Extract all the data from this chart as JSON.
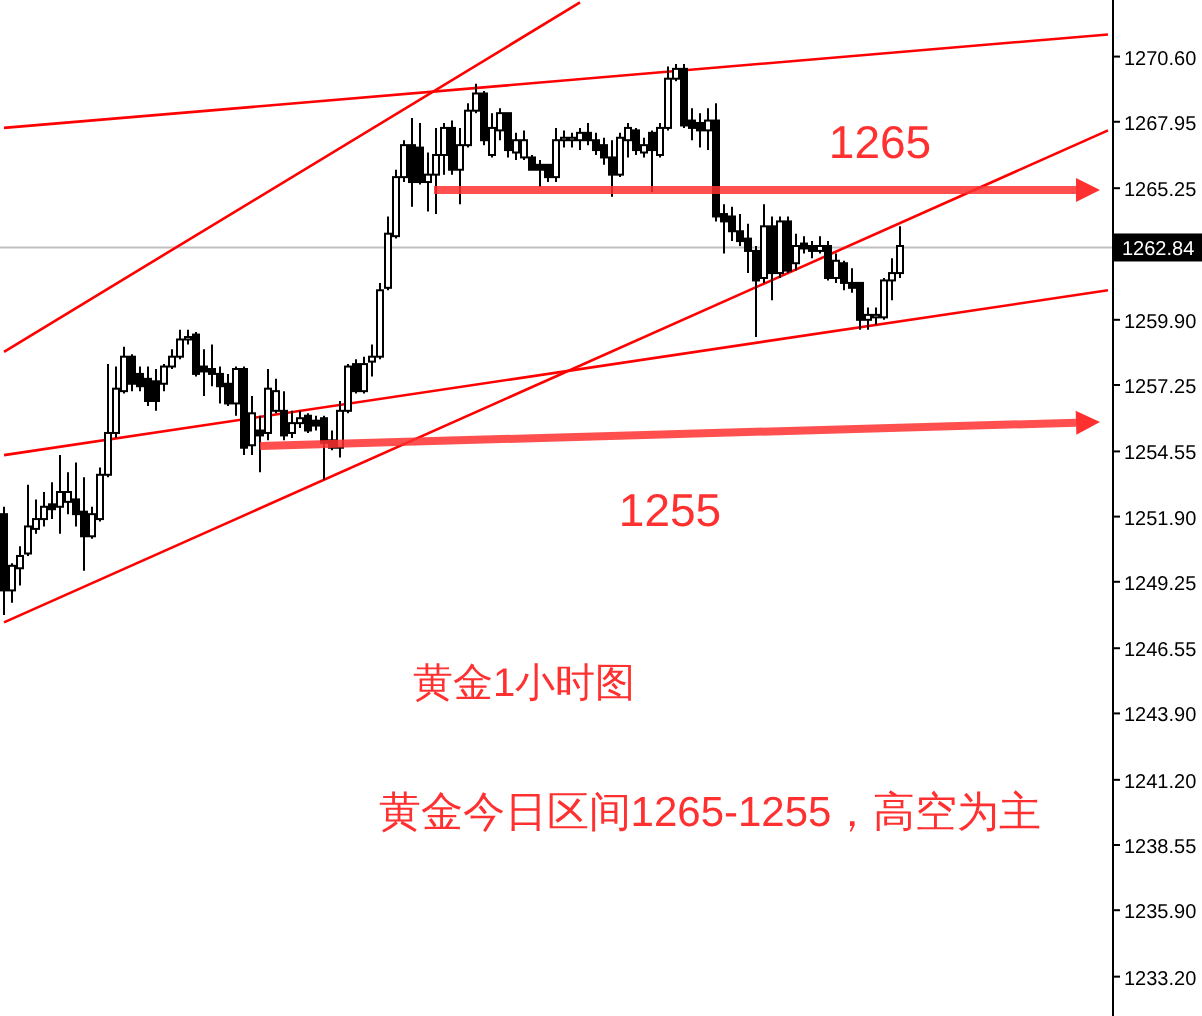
{
  "chart_data": {
    "type": "candlestick",
    "categories": [
      null,
      null,
      null,
      null,
      null,
      null,
      null,
      null,
      null,
      null,
      null,
      null,
      null,
      null,
      null,
      null,
      null,
      null,
      null,
      null,
      null,
      null,
      null,
      null,
      null,
      null,
      null,
      null,
      null,
      null,
      null,
      null,
      null,
      null,
      null,
      null,
      null,
      null,
      null,
      null,
      null,
      null,
      null,
      null,
      null,
      null,
      null,
      null,
      null,
      null,
      null,
      null,
      null,
      null,
      null,
      null,
      null,
      null,
      null,
      null,
      null,
      null,
      null,
      null,
      null,
      null,
      null,
      null,
      null,
      null,
      null,
      null,
      null,
      null,
      null,
      null,
      null,
      null,
      null,
      null,
      null,
      null,
      null,
      null,
      null,
      null,
      null,
      null,
      null,
      null,
      null,
      null,
      null,
      null,
      null,
      null,
      null,
      null,
      null,
      null,
      null,
      null,
      null,
      null,
      null,
      null,
      null,
      null,
      null,
      null,
      null,
      null,
      null,
      null,
      null,
      null,
      null,
      null,
      null,
      null,
      null,
      null,
      null,
      null,
      null,
      null,
      null,
      null,
      null,
      null,
      null,
      null,
      null,
      null,
      null,
      null,
      null,
      null,
      null
    ],
    "ohlc": [
      [
        1252.0,
        1252.3,
        1247.9,
        1248.9
      ],
      [
        1248.9,
        1250.0,
        1248.4,
        1249.9
      ],
      [
        1249.8,
        1250.7,
        1249.1,
        1250.3
      ],
      [
        1250.4,
        1253.2,
        1250.3,
        1251.5
      ],
      [
        1251.4,
        1252.6,
        1251.2,
        1251.8
      ],
      [
        1251.8,
        1252.9,
        1251.5,
        1252.3
      ],
      [
        1252.4,
        1253.3,
        1251.8,
        1252.2
      ],
      [
        1252.3,
        1254.4,
        1251.2,
        1252.9
      ],
      [
        1252.5,
        1253.7,
        1252.0,
        1252.9
      ],
      [
        1252.6,
        1254.1,
        1251.5,
        1252.0
      ],
      [
        1252.1,
        1253.5,
        1249.7,
        1251.1
      ],
      [
        1251.1,
        1252.3,
        1251.0,
        1252.0
      ],
      [
        1251.8,
        1253.9,
        1251.7,
        1253.6
      ],
      [
        1253.6,
        1258.1,
        1253.5,
        1255.3
      ],
      [
        1255.3,
        1258.0,
        1255.1,
        1257.1
      ],
      [
        1257.0,
        1258.8,
        1256.9,
        1258.4
      ],
      [
        1258.4,
        1258.5,
        1257.0,
        1257.3
      ],
      [
        1257.7,
        1258.0,
        1257.0,
        1257.2
      ],
      [
        1257.5,
        1258.0,
        1256.4,
        1256.6
      ],
      [
        1257.4,
        1257.9,
        1256.2,
        1256.6
      ],
      [
        1257.3,
        1258.1,
        1257.0,
        1258.0
      ],
      [
        1258.0,
        1258.7,
        1257.9,
        1258.4
      ],
      [
        1258.4,
        1259.5,
        1258.3,
        1259.1
      ],
      [
        1259.1,
        1259.5,
        1258.9,
        1259.2
      ],
      [
        1259.3,
        1259.4,
        1257.6,
        1257.7
      ],
      [
        1258.0,
        1258.7,
        1256.8,
        1257.8
      ],
      [
        1257.9,
        1258.9,
        1257.2,
        1257.7
      ],
      [
        1257.7,
        1258.0,
        1256.5,
        1257.2
      ],
      [
        1257.3,
        1257.7,
        1256.4,
        1256.5
      ],
      [
        1256.5,
        1258.0,
        1256.0,
        1257.9
      ],
      [
        1257.9,
        1258.0,
        1254.4,
        1254.7
      ],
      [
        1254.8,
        1256.8,
        1254.4,
        1256.1
      ],
      [
        1255.4,
        1256.0,
        1253.7,
        1255.2
      ],
      [
        1255.3,
        1257.9,
        1255.0,
        1257.1
      ],
      [
        1256.2,
        1257.5,
        1256.1,
        1257.0
      ],
      [
        1256.2,
        1257.0,
        1255.0,
        1255.2
      ],
      [
        1255.3,
        1256.2,
        1255.1,
        1255.7
      ],
      [
        1255.7,
        1256.2,
        1255.5,
        1255.9
      ],
      [
        1256.0,
        1256.1,
        1255.3,
        1255.4
      ],
      [
        1255.8,
        1256.0,
        1255.4,
        1255.6
      ],
      [
        1255.9,
        1256.0,
        1253.4,
        1254.9
      ],
      [
        1255.0,
        1255.4,
        1254.6,
        1254.7
      ],
      [
        1254.7,
        1256.6,
        1254.3,
        1256.2
      ],
      [
        1256.2,
        1258.1,
        1256.1,
        1258.0
      ],
      [
        1258.1,
        1258.3,
        1256.9,
        1257.0
      ],
      [
        1257.0,
        1258.4,
        1256.9,
        1258.1
      ],
      [
        1258.2,
        1258.9,
        1257.6,
        1258.4
      ],
      [
        1258.4,
        1261.4,
        1258.3,
        1261.1
      ],
      [
        1261.2,
        1264.1,
        1261.1,
        1263.4
      ],
      [
        1263.3,
        1266.0,
        1263.2,
        1265.7
      ],
      [
        1265.7,
        1267.2,
        1265.5,
        1267.0
      ],
      [
        1267.0,
        1268.1,
        1264.5,
        1265.5
      ],
      [
        1266.9,
        1267.9,
        1265.4,
        1265.5
      ],
      [
        1265.5,
        1266.7,
        1264.3,
        1265.8
      ],
      [
        1265.8,
        1267.7,
        1264.2,
        1266.6
      ],
      [
        1266.6,
        1267.9,
        1265.8,
        1267.7
      ],
      [
        1267.7,
        1268.0,
        1265.8,
        1266.0
      ],
      [
        1266.0,
        1267.7,
        1264.6,
        1267.0
      ],
      [
        1267.0,
        1268.7,
        1266.9,
        1268.4
      ],
      [
        1268.4,
        1269.5,
        1268.3,
        1269.1
      ],
      [
        1269.1,
        1269.2,
        1267.0,
        1267.2
      ],
      [
        1266.6,
        1268.3,
        1266.5,
        1267.7
      ],
      [
        1267.6,
        1268.5,
        1267.2,
        1268.3
      ],
      [
        1268.3,
        1268.3,
        1266.5,
        1266.8
      ],
      [
        1266.7,
        1267.5,
        1266.4,
        1267.2
      ],
      [
        1266.5,
        1267.6,
        1266.4,
        1267.2
      ],
      [
        1266.5,
        1266.6,
        1266.0,
        1266.0
      ],
      [
        1266.2,
        1266.4,
        1265.3,
        1266.0
      ],
      [
        1266.2,
        1266.2,
        1265.5,
        1265.7
      ],
      [
        1265.7,
        1267.7,
        1265.5,
        1267.2
      ],
      [
        1267.2,
        1267.6,
        1266.9,
        1267.3
      ],
      [
        1267.2,
        1267.5,
        1266.9,
        1267.3
      ],
      [
        1267.2,
        1267.7,
        1266.8,
        1267.5
      ],
      [
        1267.5,
        1267.9,
        1267.0,
        1267.2
      ],
      [
        1267.2,
        1267.5,
        1266.6,
        1266.8
      ],
      [
        1267.0,
        1267.3,
        1266.2,
        1266.5
      ],
      [
        1266.5,
        1267.2,
        1264.9,
        1265.8
      ],
      [
        1265.8,
        1267.5,
        1265.7,
        1267.3
      ],
      [
        1267.2,
        1267.9,
        1266.5,
        1267.7
      ],
      [
        1267.6,
        1267.7,
        1266.6,
        1266.8
      ],
      [
        1266.7,
        1267.3,
        1266.5,
        1267.0
      ],
      [
        1267.5,
        1267.6,
        1265.1,
        1266.8
      ],
      [
        1266.6,
        1267.9,
        1266.5,
        1267.7
      ],
      [
        1267.7,
        1270.2,
        1267.6,
        1269.7
      ],
      [
        1269.7,
        1270.3,
        1269.6,
        1270.1
      ],
      [
        1270.1,
        1270.3,
        1267.7,
        1267.8
      ],
      [
        1268.0,
        1268.5,
        1267.2,
        1267.7
      ],
      [
        1267.9,
        1268.3,
        1266.9,
        1267.6
      ],
      [
        1267.6,
        1268.5,
        1266.8,
        1268.0
      ],
      [
        1268.0,
        1268.7,
        1263.9,
        1264.1
      ],
      [
        1264.2,
        1264.6,
        1262.6,
        1263.9
      ],
      [
        1264.1,
        1264.5,
        1263.1,
        1263.5
      ],
      [
        1263.5,
        1264.2,
        1262.9,
        1263.1
      ],
      [
        1263.2,
        1263.8,
        1261.8,
        1262.7
      ],
      [
        1262.7,
        1262.9,
        1259.2,
        1261.5
      ],
      [
        1261.6,
        1264.6,
        1261.4,
        1263.7
      ],
      [
        1263.7,
        1264.1,
        1260.7,
        1261.8
      ],
      [
        1261.8,
        1264.1,
        1261.6,
        1263.9
      ],
      [
        1263.9,
        1264.1,
        1261.8,
        1261.9
      ],
      [
        1262.2,
        1263.4,
        1261.9,
        1262.9
      ],
      [
        1263.0,
        1263.3,
        1262.6,
        1262.8
      ],
      [
        1262.9,
        1263.1,
        1262.4,
        1262.7
      ],
      [
        1262.7,
        1263.3,
        1262.6,
        1262.9
      ],
      [
        1262.9,
        1263.1,
        1261.5,
        1261.6
      ],
      [
        1261.6,
        1262.6,
        1261.4,
        1262.3
      ],
      [
        1262.2,
        1262.3,
        1261.1,
        1261.4
      ],
      [
        1261.4,
        1262.0,
        1261.0,
        1261.2
      ],
      [
        1261.4,
        1261.4,
        1259.5,
        1259.9
      ],
      [
        1259.9,
        1260.4,
        1259.5,
        1260.1
      ],
      [
        1260.0,
        1260.4,
        1259.7,
        1260.1
      ],
      [
        1260.0,
        1261.6,
        1259.9,
        1261.5
      ],
      [
        1261.5,
        1262.4,
        1260.7,
        1261.8
      ],
      [
        1261.8,
        1263.7,
        1261.6,
        1262.9
      ],
      null,
      null,
      null,
      null,
      null,
      null,
      null,
      null,
      null,
      null,
      null,
      null,
      null,
      null,
      null,
      null,
      null,
      null,
      null,
      null,
      null,
      null,
      null,
      null,
      null,
      null
    ],
    "series": [
      {
        "type": "line",
        "color": "#ff0000",
        "values": [
          1267.7,
          null,
          null,
          null,
          null,
          null,
          null,
          null,
          null,
          null,
          null,
          null,
          null,
          null,
          null,
          null,
          null,
          null,
          null,
          null,
          null,
          null,
          null,
          null,
          null,
          null,
          null,
          null,
          null,
          null,
          null,
          null,
          null,
          null,
          null,
          null,
          null,
          null,
          null,
          null,
          null,
          null,
          null,
          null,
          null,
          null,
          null,
          null,
          null,
          null,
          null,
          null,
          null,
          null,
          null,
          null,
          null,
          null,
          null,
          null,
          null,
          null,
          null,
          null,
          null,
          null,
          null,
          null,
          null,
          null,
          null,
          null,
          null,
          null,
          null,
          null,
          null,
          null,
          null,
          null,
          null,
          null,
          null,
          null,
          null,
          null,
          null,
          null,
          null,
          null,
          null,
          null,
          null,
          null,
          null,
          null,
          null,
          null,
          null,
          null,
          null,
          null,
          null,
          null,
          null,
          null,
          null,
          null,
          null,
          null,
          null,
          null,
          null,
          null,
          null,
          null,
          null,
          null,
          null,
          null,
          null,
          null,
          null,
          null,
          null,
          null,
          null,
          null,
          null,
          null,
          null,
          null,
          null,
          null,
          null,
          null,
          null,
          null,
          1271.5
        ]
      },
      {
        "type": "line",
        "color": "#ff0000",
        "values": [
          1258.6,
          null,
          null,
          null,
          null,
          null,
          null,
          null,
          null,
          null,
          null,
          null,
          null,
          null,
          null,
          null,
          null,
          null,
          null,
          null,
          null,
          null,
          null,
          null,
          null,
          null,
          null,
          null,
          null,
          null,
          null,
          null,
          null,
          null,
          null,
          null,
          null,
          null,
          null,
          null,
          null,
          null,
          null,
          null,
          null,
          null,
          null,
          null,
          null,
          null,
          null,
          null,
          null,
          null,
          null,
          null,
          null,
          null,
          null,
          null,
          null,
          null,
          null,
          null,
          null,
          null,
          null,
          null,
          null,
          null,
          null,
          null,
          1272.8,
          null,
          null,
          null,
          null,
          null,
          null,
          null,
          null,
          null,
          null,
          null,
          null,
          null,
          null,
          null,
          null,
          null,
          null,
          null,
          null,
          null,
          null,
          null,
          null,
          null,
          null,
          null,
          null,
          null,
          null,
          null,
          null,
          null,
          null,
          null,
          null,
          null,
          null,
          null,
          null,
          null,
          null,
          null,
          null,
          null,
          null,
          null,
          null,
          null,
          null,
          null,
          null,
          null,
          null,
          null,
          null,
          null,
          null,
          null,
          null,
          null,
          null,
          null,
          null,
          null,
          null
        ]
      },
      {
        "type": "line",
        "color": "#ff0000",
        "values": [
          1247.6,
          null,
          null,
          null,
          null,
          null,
          null,
          null,
          null,
          null,
          null,
          null,
          null,
          null,
          null,
          null,
          null,
          null,
          null,
          null,
          null,
          null,
          null,
          null,
          null,
          null,
          null,
          null,
          null,
          null,
          null,
          null,
          null,
          null,
          null,
          null,
          null,
          null,
          null,
          null,
          null,
          null,
          null,
          null,
          null,
          null,
          null,
          null,
          null,
          null,
          null,
          null,
          null,
          null,
          null,
          null,
          null,
          null,
          null,
          null,
          null,
          null,
          null,
          null,
          null,
          null,
          null,
          null,
          null,
          null,
          null,
          null,
          null,
          null,
          null,
          null,
          null,
          null,
          null,
          null,
          null,
          null,
          null,
          null,
          null,
          null,
          null,
          null,
          null,
          null,
          null,
          null,
          null,
          null,
          null,
          null,
          null,
          null,
          null,
          null,
          null,
          null,
          null,
          null,
          null,
          null,
          null,
          null,
          null,
          null,
          null,
          null,
          null,
          null,
          null,
          null,
          null,
          null,
          null,
          null,
          null,
          null,
          null,
          null,
          null,
          null,
          null,
          null,
          null,
          null,
          null,
          null,
          null,
          null,
          null,
          null,
          null,
          null,
          1267.6
        ]
      },
      {
        "type": "line",
        "color": "#ff0000",
        "values": [
          1254.4,
          null,
          null,
          null,
          null,
          null,
          null,
          null,
          null,
          null,
          null,
          null,
          null,
          null,
          null,
          null,
          null,
          null,
          null,
          null,
          null,
          null,
          null,
          null,
          null,
          null,
          null,
          null,
          null,
          null,
          null,
          null,
          null,
          null,
          null,
          null,
          null,
          null,
          null,
          null,
          null,
          null,
          null,
          null,
          null,
          null,
          null,
          null,
          null,
          null,
          null,
          null,
          null,
          null,
          null,
          null,
          null,
          null,
          null,
          null,
          null,
          null,
          null,
          null,
          null,
          null,
          null,
          null,
          null,
          null,
          null,
          null,
          null,
          null,
          null,
          null,
          null,
          null,
          null,
          null,
          null,
          null,
          null,
          null,
          null,
          null,
          null,
          null,
          null,
          null,
          null,
          null,
          null,
          null,
          null,
          null,
          null,
          null,
          null,
          null,
          null,
          null,
          null,
          null,
          null,
          null,
          null,
          null,
          null,
          null,
          null,
          null,
          null,
          null,
          null,
          null,
          null,
          null,
          null,
          null,
          null,
          null,
          null,
          null,
          null,
          null,
          null,
          null,
          null,
          null,
          null,
          null,
          null,
          null,
          null,
          null,
          null,
          null,
          1261.1
        ]
      }
    ],
    "ylim": [
      1231.6,
      1272.9
    ],
    "yticks": [
      {
        "value": 1270.6,
        "label": "1270.60"
      },
      {
        "value": 1267.95,
        "label": "1267.95"
      },
      {
        "value": 1265.25,
        "label": "1265.25"
      },
      {
        "value": 1262.6,
        "label": null
      },
      {
        "value": 1259.9,
        "label": "1259.90"
      },
      {
        "value": 1257.25,
        "label": "1257.25"
      },
      {
        "value": 1254.55,
        "label": "1254.55"
      },
      {
        "value": 1251.9,
        "label": "1251.90"
      },
      {
        "value": 1249.25,
        "label": "1249.25"
      },
      {
        "value": 1246.55,
        "label": "1246.55"
      },
      {
        "value": 1243.9,
        "label": "1243.90"
      },
      {
        "value": 1241.2,
        "label": "1241.20"
      },
      {
        "value": 1238.55,
        "label": "1238.55"
      },
      {
        "value": 1235.9,
        "label": "1235.90"
      },
      {
        "value": 1233.2,
        "label": "1233.20"
      }
    ],
    "ref_lines": [
      {
        "axis": "y",
        "value": 1262.84,
        "label": "1262.84",
        "color": "#c0c0c0"
      }
    ],
    "annotations": [
      "1265",
      "1255",
      "黄金1小时图",
      "黄金今日区间1265-1255，高空为主"
    ],
    "tick_labels": "y"
  }
}
